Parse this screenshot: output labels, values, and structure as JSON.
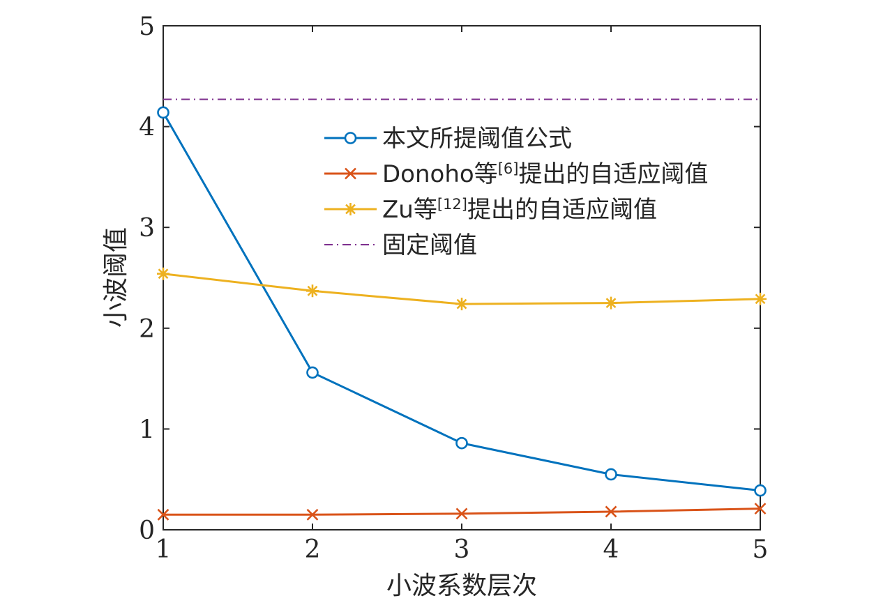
{
  "chart_data": {
    "type": "line",
    "xlabel": "小波系数层次",
    "ylabel": "小波阈值",
    "x": [
      1,
      2,
      3,
      4,
      5
    ],
    "xlim": [
      1,
      5
    ],
    "ylim": [
      0,
      5
    ],
    "xticks": [
      1,
      2,
      3,
      4,
      5
    ],
    "yticks": [
      0,
      1,
      2,
      3,
      4,
      5
    ],
    "grid": false,
    "legend_position": "top-right",
    "series": [
      {
        "name": "本文所提阈值公式",
        "values": [
          4.14,
          1.56,
          0.86,
          0.55,
          0.39
        ],
        "color": "#0072BD",
        "marker": "circle",
        "line": "solid"
      },
      {
        "name": "Donoho等[6]提出的自适应阈值",
        "name_parts": [
          "Donoho等",
          "[6]",
          "提出的自适应阈值"
        ],
        "values": [
          0.15,
          0.15,
          0.16,
          0.18,
          0.21
        ],
        "color": "#D95319",
        "marker": "x",
        "line": "solid"
      },
      {
        "name": "Zu等[12]提出的自适应阈值",
        "name_parts": [
          "Zu等",
          "[12]",
          "提出的自适应阈值"
        ],
        "values": [
          2.54,
          2.37,
          2.24,
          2.25,
          2.29
        ],
        "color": "#EDB120",
        "marker": "asterisk",
        "line": "solid"
      },
      {
        "name": "固定阈值",
        "values": [
          4.27,
          4.27,
          4.27,
          4.27,
          4.27
        ],
        "color": "#7E2F8E",
        "marker": "none",
        "line": "dashdot"
      }
    ]
  }
}
